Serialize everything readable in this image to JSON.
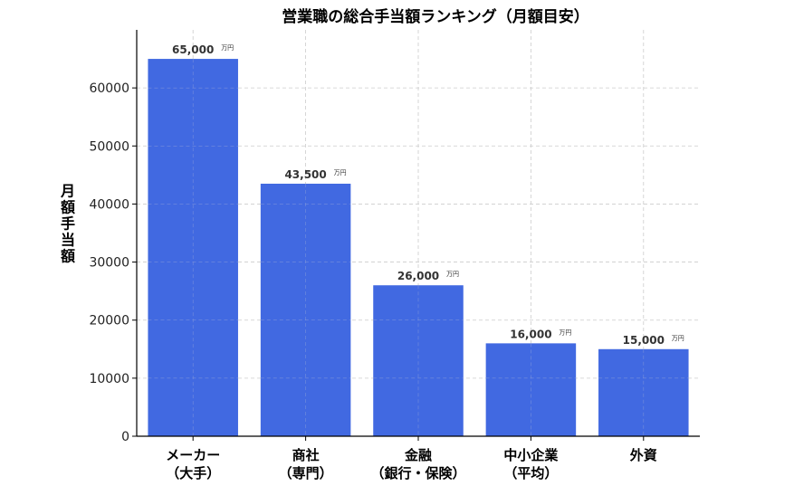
{
  "chart_data": {
    "type": "bar",
    "title": "営業職の総合手当額ランキング（月額目安）",
    "xlabel": "",
    "ylabel": "月額手当額",
    "categories": [
      [
        "メーカー",
        "（大手）"
      ],
      [
        "商社",
        "（専門）"
      ],
      [
        "金融",
        "（銀行・保険）"
      ],
      [
        "中小企業",
        "（平均）"
      ],
      [
        "外資"
      ]
    ],
    "values": [
      65000,
      43500,
      26000,
      16000,
      15000
    ],
    "data_labels": [
      "65,000",
      "43,500",
      "26,000",
      "16,000",
      "15,000"
    ],
    "data_label_unit": "万円",
    "ylim": [
      0,
      70000
    ],
    "yticks": [
      0,
      10000,
      20000,
      30000,
      40000,
      50000,
      60000
    ],
    "ytick_labels": [
      "0",
      "10000",
      "20000",
      "30000",
      "40000",
      "50000",
      "60000"
    ],
    "grid": true,
    "bar_color": "#4169E1"
  }
}
